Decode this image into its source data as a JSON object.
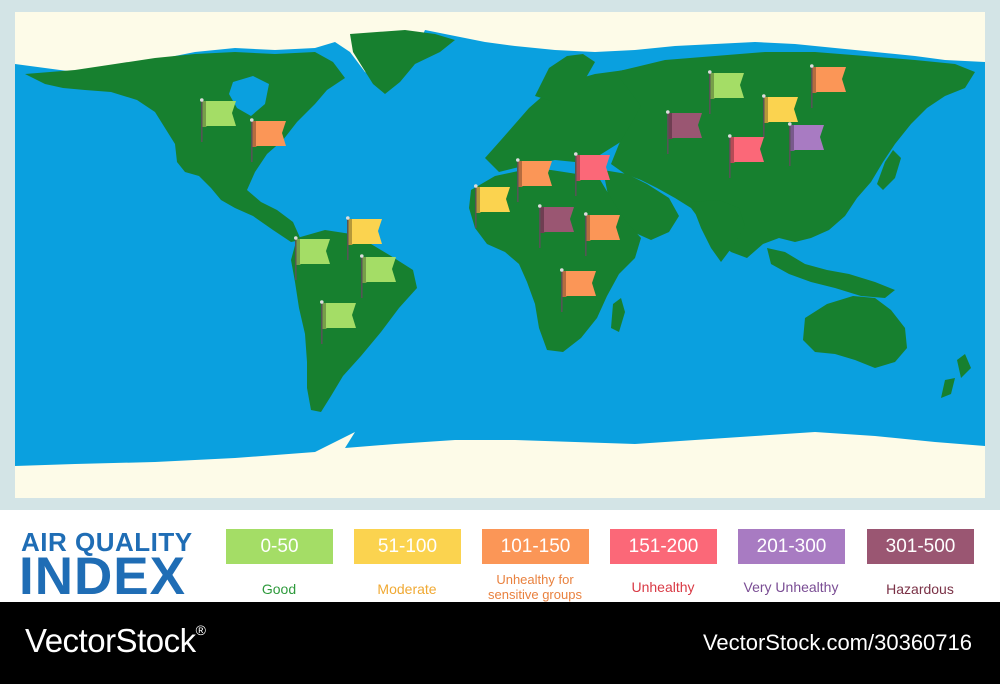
{
  "title": {
    "line1": "AIR QUALITY",
    "line2": "INDEX"
  },
  "legend": [
    {
      "range": "0-50",
      "label": "Good",
      "color": "#a4dd66",
      "label_color": "#2e9a3c"
    },
    {
      "range": "51-100",
      "label": "Moderate",
      "color": "#fbd34f",
      "label_color": "#f0a933"
    },
    {
      "range": "101-150",
      "label": "Unhealthy for sensitive groups",
      "color": "#fb9657",
      "label_color": "#e9813e"
    },
    {
      "range": "151-200",
      "label": "Unhealthy",
      "color": "#fb6878",
      "label_color": "#d93a45"
    },
    {
      "range": "201-300",
      "label": "Very Unhealthy",
      "color": "#a87bc2",
      "label_color": "#7a4d94"
    },
    {
      "range": "301-500",
      "label": "Hazardous",
      "color": "#9a5672",
      "label_color": "#7a3146"
    }
  ],
  "map": {
    "ocean_color": "#0aa0df",
    "land_color": "#17802f",
    "ice_color": "#fdfbe8"
  },
  "flags": [
    {
      "region": "canada",
      "level": "Good"
    },
    {
      "region": "usa-east",
      "level": "Unhealthy for sensitive groups"
    },
    {
      "region": "colombia",
      "level": "Good"
    },
    {
      "region": "venezuela",
      "level": "Moderate"
    },
    {
      "region": "brazil-north",
      "level": "Good"
    },
    {
      "region": "brazil-south",
      "level": "Good"
    },
    {
      "region": "morocco",
      "level": "Unhealthy for sensitive groups"
    },
    {
      "region": "egypt",
      "level": "Unhealthy"
    },
    {
      "region": "west-africa",
      "level": "Moderate"
    },
    {
      "region": "central-africa",
      "level": "Hazardous"
    },
    {
      "region": "east-africa",
      "level": "Unhealthy for sensitive groups"
    },
    {
      "region": "southern-africa",
      "level": "Unhealthy for sensitive groups"
    },
    {
      "region": "russia-west",
      "level": "Hazardous"
    },
    {
      "region": "russia-north",
      "level": "Good"
    },
    {
      "region": "russia-east",
      "level": "Unhealthy for sensitive groups"
    },
    {
      "region": "mongolia",
      "level": "Moderate"
    },
    {
      "region": "central-asia",
      "level": "Unhealthy"
    },
    {
      "region": "china",
      "level": "Very Unhealthy"
    }
  ],
  "footer": {
    "brand": "VectorStock",
    "registered": "®",
    "url": "VectorStock.com/30360716"
  }
}
